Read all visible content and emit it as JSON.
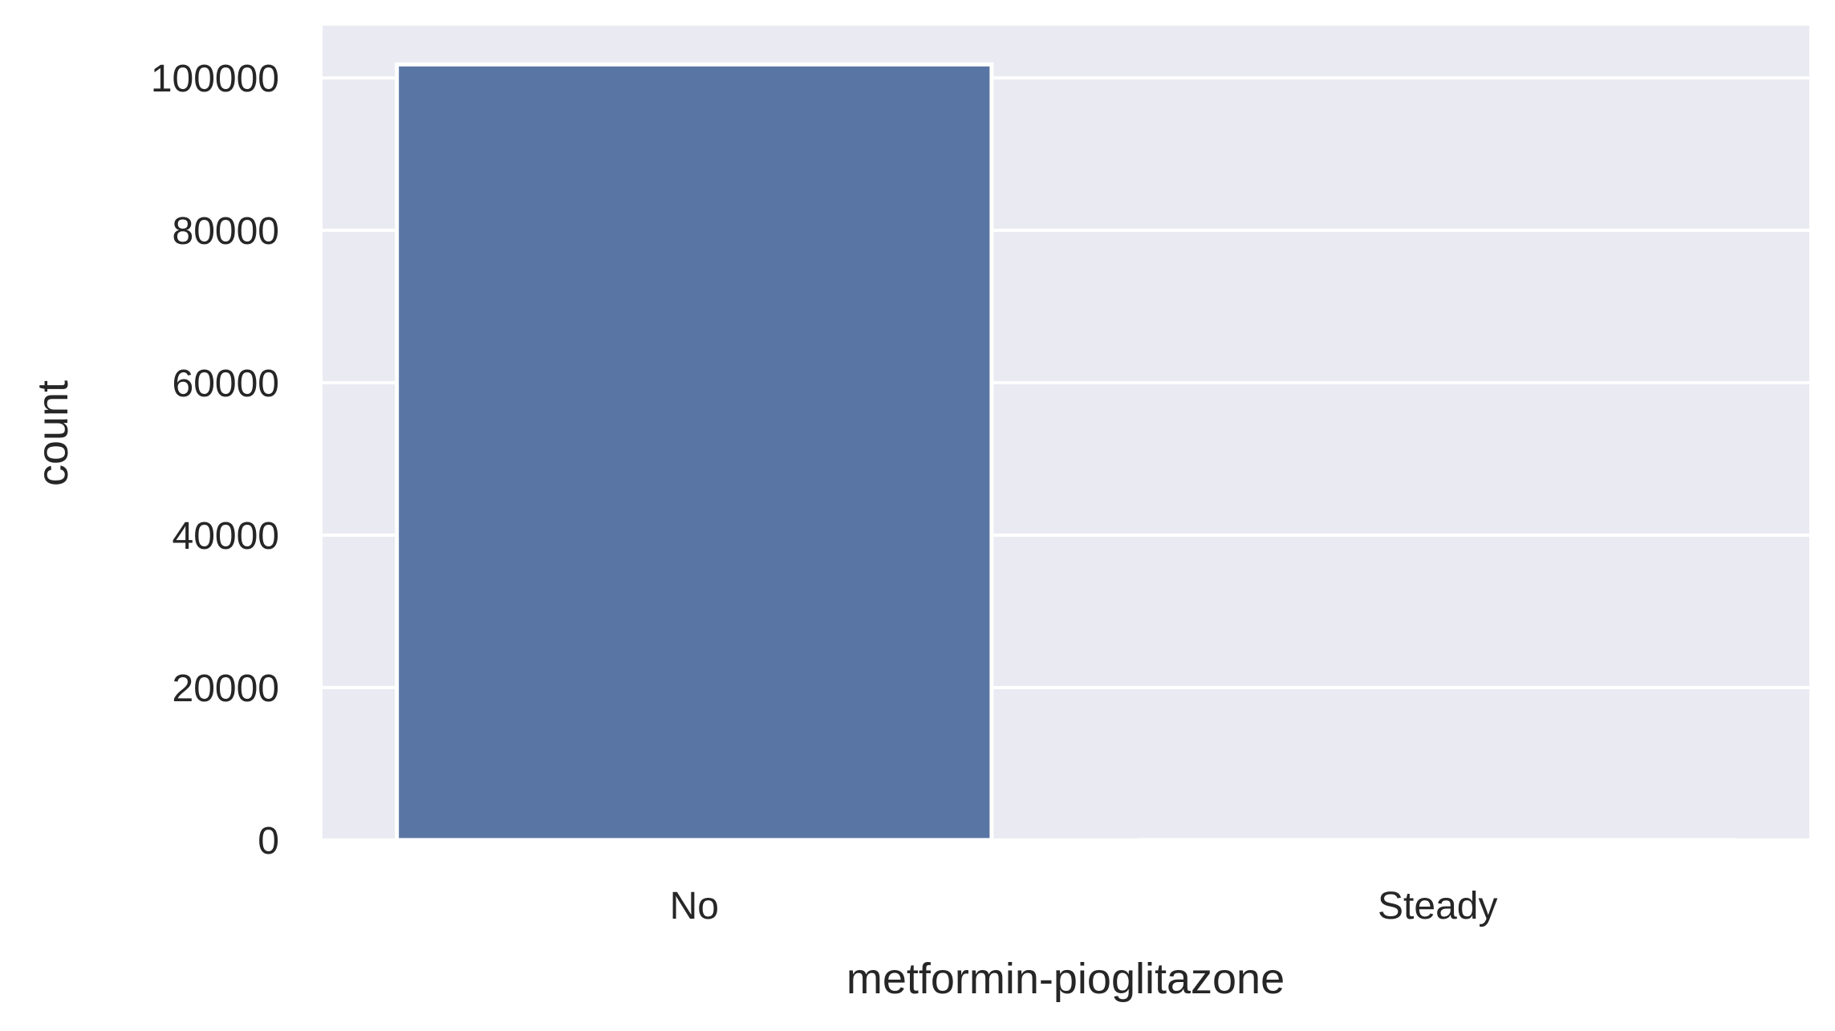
{
  "chart_data": {
    "type": "bar",
    "categories": [
      "No",
      "Steady"
    ],
    "values": [
      101765,
      1
    ],
    "xlabel": "metformin-pioglitazone",
    "ylabel": "count",
    "ylim": [
      0,
      106850
    ],
    "yticks": [
      0,
      20000,
      40000,
      60000,
      80000,
      100000
    ],
    "ytick_labels": [
      "0",
      "20000",
      "40000",
      "60000",
      "80000",
      "100000"
    ],
    "grid": true,
    "colors": {
      "background": "#EAEAF2",
      "grid": "#FFFFFF",
      "bar": "#5975A4",
      "bar_edge": "#FFFFFF",
      "text": "#262626"
    }
  }
}
